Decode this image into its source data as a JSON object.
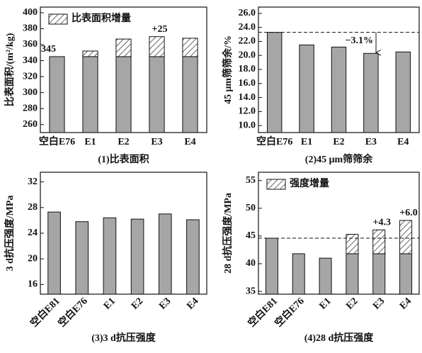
{
  "chart_data": [
    {
      "type": "bar",
      "title": "(1)比表面积",
      "y_label": "比表面积/(m²/kg)",
      "categories": [
        "空白E76",
        "E1",
        "E2",
        "E3",
        "E4"
      ],
      "series": [
        {
          "color": "#a6a6a6",
          "values": [
            345,
            345,
            345,
            345,
            345
          ],
          "show_label": [
            true,
            false,
            false,
            false,
            false
          ]
        },
        {
          "name": "比表面积增量",
          "color": "#ffffff",
          "hatch": true,
          "values": [
            null,
            7,
            22,
            25,
            23
          ],
          "value_labels": [
            null,
            null,
            null,
            "+25",
            null
          ]
        }
      ],
      "ylim": [
        250,
        407
      ],
      "yticks": [
        260,
        280,
        300,
        320,
        340,
        360,
        380,
        400
      ],
      "legend": "upper left",
      "grid": false
    },
    {
      "type": "bar",
      "title": "(2)45 μm筛筛余",
      "y_label": "45 μm筛筛余/%",
      "categories": [
        "空白E76",
        "E1",
        "E2",
        "E3",
        "E4"
      ],
      "values": [
        23.3,
        21.5,
        21.2,
        20.3,
        20.5
      ],
      "color": "#a6a6a6",
      "dashed_reference": true,
      "annotation": "−3.1%",
      "ylim": [
        9,
        26.9
      ],
      "yticks": [
        {
          "value": 10,
          "label": "10.0"
        },
        {
          "value": 12,
          "label": "12.0"
        },
        {
          "value": 14,
          "label": "14.0"
        },
        {
          "value": 16,
          "label": "16.0"
        },
        {
          "value": 18,
          "label": "18.0"
        },
        {
          "value": 20,
          "label": "20.0"
        },
        {
          "value": 22,
          "label": "22.0"
        },
        {
          "value": 24,
          "label": "24.0"
        },
        {
          "value": 26,
          "label": "26.0"
        }
      ],
      "grid": false
    },
    {
      "type": "bar",
      "title": "(3)3 d抗压强度",
      "y_label": "3 d抗压强度/MPa",
      "categories": [
        "空白E81",
        "空白E76",
        "E1",
        "E2",
        "E3",
        "E4"
      ],
      "values": [
        27.3,
        25.8,
        26.4,
        26.2,
        27.0,
        26.1
      ],
      "color": "#a6a6a6",
      "ylim": [
        14.5,
        33.5
      ],
      "yticks": [
        16,
        20,
        24,
        28,
        32
      ],
      "grid": false
    },
    {
      "type": "bar",
      "title": "(4)28 d抗压强度",
      "y_label": "28 d抗压强度/MPa",
      "categories": [
        "空白E81",
        "空白E76",
        "E1",
        "E2",
        "E3",
        "E4"
      ],
      "series": [
        {
          "color": "#a6a6a6",
          "values": [
            44.6,
            41.8,
            41.0,
            41.8,
            41.8,
            41.8
          ]
        },
        {
          "name": "强度增量",
          "color": "#ffffff",
          "hatch": true,
          "values": [
            null,
            null,
            null,
            3.5,
            4.3,
            6.0
          ],
          "value_labels": [
            null,
            null,
            null,
            null,
            "+4.3",
            "+6.0"
          ]
        }
      ],
      "dashed_reference": true,
      "ylim": [
        34.5,
        56.5
      ],
      "yticks": [
        35,
        40,
        45,
        50,
        55
      ],
      "legend": "upper left",
      "grid": false
    }
  ]
}
